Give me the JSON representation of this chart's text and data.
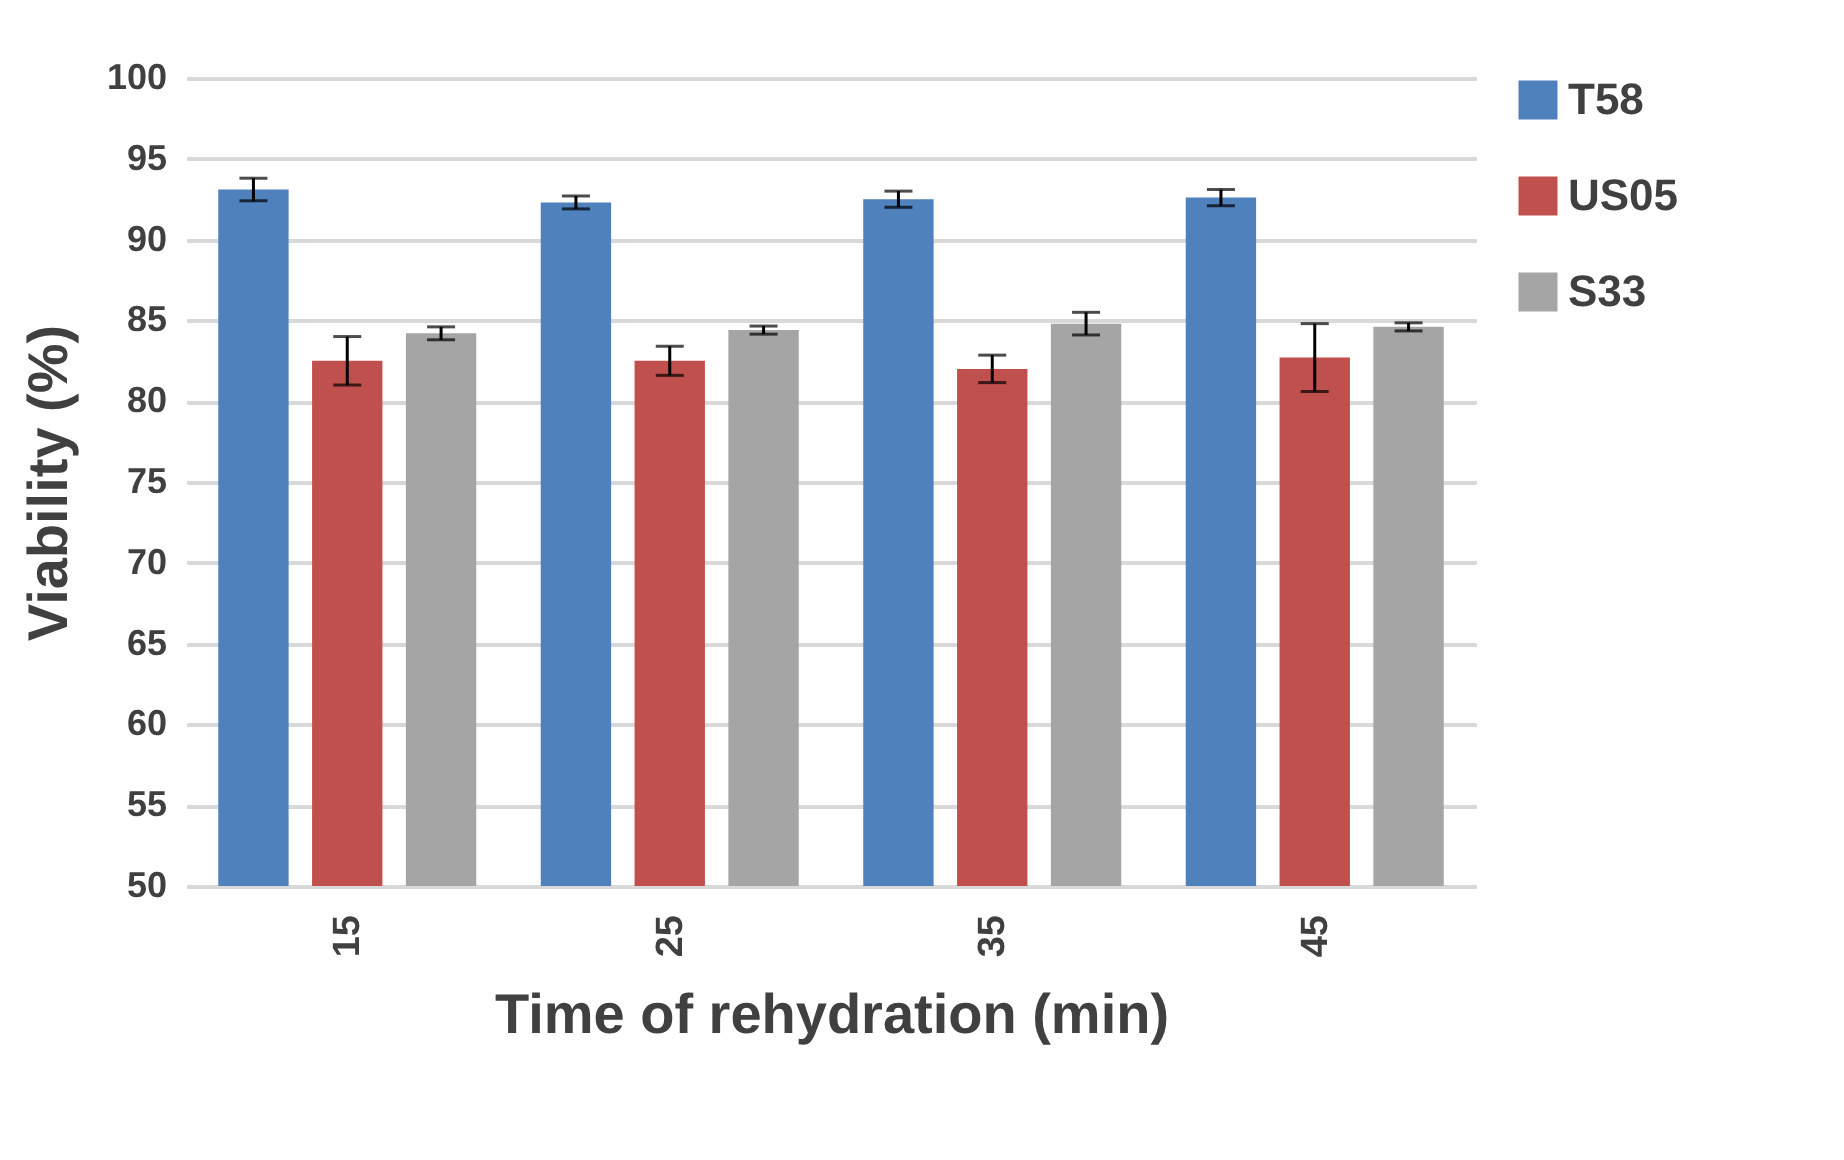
{
  "chart_data": {
    "type": "bar",
    "xlabel": "Time of rehydration (min)",
    "ylabel": "Viability (%)",
    "categories": [
      "15",
      "25",
      "35",
      "45"
    ],
    "series": [
      {
        "name": "T58",
        "color": "#4f81bd",
        "values": [
          93.1,
          92.3,
          92.5,
          92.6
        ],
        "errors": [
          0.7,
          0.4,
          0.5,
          0.5
        ]
      },
      {
        "name": "US05",
        "color": "#c0504d",
        "values": [
          82.5,
          82.5,
          82.0,
          82.7
        ],
        "errors": [
          1.5,
          0.9,
          0.85,
          2.1
        ]
      },
      {
        "name": "S33",
        "color": "#a5a5a5",
        "values": [
          84.2,
          84.4,
          84.8,
          84.6
        ],
        "errors": [
          0.4,
          0.25,
          0.7,
          0.25
        ]
      }
    ],
    "ylim": [
      50,
      100
    ],
    "yticks": [
      50,
      55,
      60,
      65,
      70,
      75,
      80,
      85,
      90,
      95,
      100
    ],
    "grid": "y",
    "legend": "right"
  }
}
